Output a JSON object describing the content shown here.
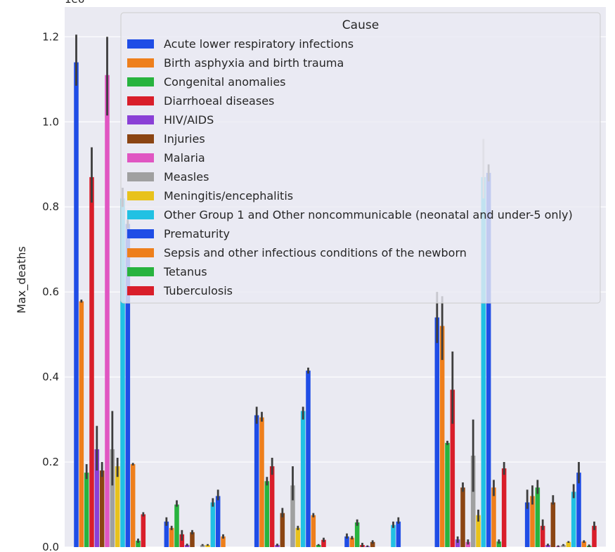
{
  "chart_data": {
    "type": "bar",
    "xlabel": "",
    "ylabel": "Max_deaths",
    "offset_label": "1e6",
    "ylim": [
      0,
      1.27
    ],
    "yticks": [
      0.0,
      0.2,
      0.4,
      0.6,
      0.8,
      1.0,
      1.2
    ],
    "ytick_labels": [
      "0.0",
      "0.2",
      "0.4",
      "0.6",
      "0.8",
      "1.0",
      "1.2"
    ],
    "grid": true,
    "legend": {
      "title": "Cause",
      "placement": "top-right"
    },
    "categories": [
      "",
      "",
      "",
      "",
      "",
      ""
    ],
    "series": [
      {
        "name": "Acute lower respiratory infections",
        "color": "#1f4de6",
        "values": [
          1.14,
          0.06,
          0.31,
          0.025,
          0.54,
          0.105
        ],
        "ci": [
          [
            1.085,
            1.205
          ],
          [
            0.05,
            0.07
          ],
          [
            0.29,
            0.33
          ],
          [
            0.02,
            0.032
          ],
          [
            0.48,
            0.6
          ],
          [
            0.09,
            0.135
          ]
        ]
      },
      {
        "name": "Birth asphyxia and birth trauma",
        "color": "#ee7f1c",
        "values": [
          0.578,
          0.045,
          0.305,
          0.022,
          0.52,
          0.12
        ],
        "ci": [
          [
            0.575,
            0.582
          ],
          [
            0.04,
            0.05
          ],
          [
            0.295,
            0.318
          ],
          [
            0.018,
            0.026
          ],
          [
            0.44,
            0.59
          ],
          [
            0.1,
            0.145
          ]
        ]
      },
      {
        "name": "Congenital anomalies",
        "color": "#28b33e",
        "values": [
          0.175,
          0.1,
          0.155,
          0.058,
          0.245,
          0.14
        ],
        "ci": [
          [
            0.16,
            0.195
          ],
          [
            0.095,
            0.11
          ],
          [
            0.145,
            0.165
          ],
          [
            0.05,
            0.065
          ],
          [
            0.24,
            0.25
          ],
          [
            0.125,
            0.158
          ]
        ]
      },
      {
        "name": "Diarrhoeal diseases",
        "color": "#d91e2a",
        "values": [
          0.87,
          0.03,
          0.19,
          0.005,
          0.37,
          0.05
        ],
        "ci": [
          [
            0.81,
            0.94
          ],
          [
            0.015,
            0.04
          ],
          [
            0.17,
            0.21
          ],
          [
            0.0,
            0.01
          ],
          [
            0.29,
            0.46
          ],
          [
            0.04,
            0.065
          ]
        ]
      },
      {
        "name": "HIV/AIDS",
        "color": "#8a40d6",
        "values": [
          0.23,
          0.005,
          0.005,
          0.002,
          0.018,
          0.005
        ],
        "ci": [
          [
            0.18,
            0.285
          ],
          [
            0.002,
            0.008
          ],
          [
            0.002,
            0.008
          ],
          [
            0.0,
            0.004
          ],
          [
            0.01,
            0.025
          ],
          [
            0.002,
            0.008
          ]
        ]
      },
      {
        "name": "Injuries",
        "color": "#8b4513",
        "values": [
          0.18,
          0.035,
          0.08,
          0.012,
          0.14,
          0.105
        ],
        "ci": [
          [
            0.165,
            0.2
          ],
          [
            0.03,
            0.04
          ],
          [
            0.07,
            0.092
          ],
          [
            0.008,
            0.016
          ],
          [
            0.13,
            0.152
          ],
          [
            0.1,
            0.122
          ]
        ]
      },
      {
        "name": "Malaria",
        "color": "#e056c2",
        "values": [
          1.11,
          0.0,
          0.0,
          0.0,
          0.012,
          0.002
        ],
        "ci": [
          [
            1.015,
            1.2
          ],
          [
            0.0,
            0.0
          ],
          [
            0.0,
            0.0
          ],
          [
            0.0,
            0.0
          ],
          [
            0.006,
            0.018
          ],
          [
            0.0,
            0.004
          ]
        ]
      },
      {
        "name": "Measles",
        "color": "#a0a0a0",
        "values": [
          0.23,
          0.005,
          0.145,
          0.0,
          0.215,
          0.005
        ],
        "ci": [
          [
            0.145,
            0.32
          ],
          [
            0.003,
            0.007
          ],
          [
            0.11,
            0.19
          ],
          [
            0.0,
            0.0
          ],
          [
            0.13,
            0.3
          ],
          [
            0.003,
            0.007
          ]
        ]
      },
      {
        "name": "Meningitis/encephalitis",
        "color": "#e8c21c",
        "values": [
          0.19,
          0.005,
          0.045,
          0.0,
          0.075,
          0.012
        ],
        "ci": [
          [
            0.165,
            0.21
          ],
          [
            0.003,
            0.007
          ],
          [
            0.04,
            0.05
          ],
          [
            0.0,
            0.0
          ],
          [
            0.06,
            0.088
          ],
          [
            0.01,
            0.014
          ]
        ]
      },
      {
        "name": "Other Group 1 and Other noncommunicable (neonatal and under-5 only)",
        "color": "#21c1e3",
        "values": [
          0.82,
          0.105,
          0.32,
          0.052,
          0.87,
          0.13
        ],
        "ci": [
          [
            0.8,
            0.845
          ],
          [
            0.095,
            0.115
          ],
          [
            0.3,
            0.33
          ],
          [
            0.045,
            0.06
          ],
          [
            0.82,
            0.96
          ],
          [
            0.115,
            0.148
          ]
        ]
      },
      {
        "name": "Prematurity",
        "color": "#1f4de6",
        "values": [
          0.76,
          0.12,
          0.415,
          0.06,
          0.88,
          0.175
        ],
        "ci": [
          [
            0.75,
            0.77
          ],
          [
            0.11,
            0.135
          ],
          [
            0.408,
            0.422
          ],
          [
            0.055,
            0.07
          ],
          [
            0.86,
            0.9
          ],
          [
            0.15,
            0.2
          ]
        ]
      },
      {
        "name": "Sepsis and other infectious conditions of the newborn",
        "color": "#ee7f1c",
        "values": [
          0.195,
          0.025,
          0.075,
          0.0,
          0.14,
          0.013
        ],
        "ci": [
          [
            0.192,
            0.198
          ],
          [
            0.02,
            0.03
          ],
          [
            0.07,
            0.08
          ],
          [
            0.0,
            0.0
          ],
          [
            0.12,
            0.158
          ],
          [
            0.01,
            0.016
          ]
        ]
      },
      {
        "name": "Tetanus",
        "color": "#28b33e",
        "values": [
          0.015,
          0.0,
          0.005,
          0.0,
          0.013,
          0.003
        ],
        "ci": [
          [
            0.01,
            0.02
          ],
          [
            0.0,
            0.0
          ],
          [
            0.003,
            0.007
          ],
          [
            0.0,
            0.0
          ],
          [
            0.008,
            0.018
          ],
          [
            0.0,
            0.006
          ]
        ]
      },
      {
        "name": "Tuberculosis",
        "color": "#d91e2a",
        "values": [
          0.077,
          0.0,
          0.017,
          0.0,
          0.185,
          0.05
        ],
        "ci": [
          [
            0.072,
            0.082
          ],
          [
            0.0,
            0.0
          ],
          [
            0.012,
            0.022
          ],
          [
            0.0,
            0.0
          ],
          [
            0.17,
            0.2
          ],
          [
            0.04,
            0.06
          ]
        ]
      }
    ]
  }
}
